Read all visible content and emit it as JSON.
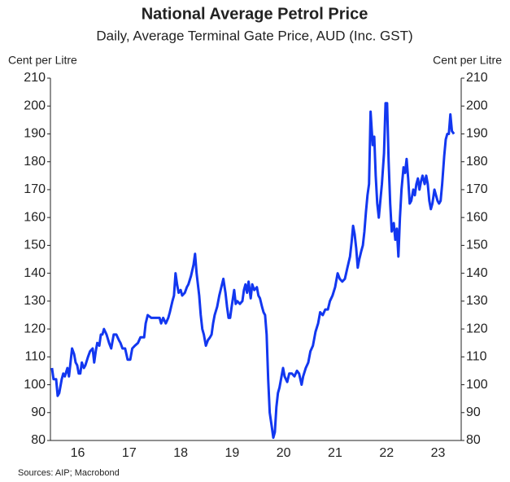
{
  "chart_data": {
    "type": "line",
    "title": "National Average Petrol Price",
    "subtitle": "Daily, Average Terminal Gate Price, AUD (Inc. GST)",
    "ylabel": "Cent per Litre",
    "y2label": "Cent per Litre",
    "source": "Sources: AIP; Macrobond",
    "color": "#1237f0",
    "x": [
      16.0,
      16.03,
      16.08,
      16.11,
      16.14,
      16.19,
      16.22,
      16.25,
      16.3,
      16.33,
      16.36,
      16.39,
      16.43,
      16.46,
      16.49,
      16.52,
      16.55,
      16.58,
      16.62,
      16.65,
      16.7,
      16.74,
      16.79,
      16.82,
      16.85,
      16.88,
      16.92,
      16.95,
      16.98,
      17.01,
      17.06,
      17.11,
      17.15,
      17.2,
      17.25,
      17.3,
      17.33,
      17.37,
      17.42,
      17.47,
      17.52,
      17.56,
      17.61,
      17.67,
      17.72,
      17.79,
      17.82,
      17.86,
      17.93,
      17.99,
      18.04,
      18.09,
      18.12,
      18.16,
      18.21,
      18.26,
      18.29,
      18.34,
      18.37,
      18.4,
      18.43,
      18.46,
      18.5,
      18.53,
      18.58,
      18.62,
      18.65,
      18.7,
      18.75,
      18.78,
      18.81,
      18.86,
      18.89,
      18.92,
      18.95,
      18.99,
      19.03,
      19.07,
      19.1,
      19.13,
      19.16,
      19.21,
      19.25,
      19.29,
      19.33,
      19.37,
      19.4,
      19.43,
      19.46,
      19.49,
      19.54,
      19.57,
      19.6,
      19.65,
      19.7,
      19.73,
      19.76,
      19.79,
      19.82,
      19.86,
      19.89,
      19.93,
      19.98,
      20.01,
      20.04,
      20.08,
      20.11,
      20.14,
      20.17,
      20.2,
      20.23,
      20.27,
      20.3,
      20.33,
      20.36,
      20.39,
      20.42,
      20.46,
      20.49,
      20.52,
      20.57,
      20.61,
      20.66,
      20.71,
      20.76,
      20.8,
      20.85,
      20.88,
      20.93,
      20.98,
      21.02,
      21.07,
      21.12,
      21.17,
      21.21,
      21.26,
      21.31,
      21.36,
      21.4,
      21.45,
      21.5,
      21.55,
      21.59,
      21.64,
      21.69,
      21.74,
      21.79,
      21.82,
      21.85,
      21.88,
      21.91,
      21.94,
      21.97,
      22.01,
      22.04,
      22.07,
      22.1,
      22.13,
      22.16,
      22.19,
      22.23,
      22.26,
      22.29,
      22.32,
      22.35,
      22.38,
      22.41,
      22.45,
      22.48,
      22.51,
      22.54,
      22.57,
      22.6,
      22.64,
      22.67,
      22.7,
      22.73,
      22.76,
      22.79,
      22.83,
      22.86,
      22.89,
      22.92,
      22.95,
      22.98,
      23.02,
      23.05,
      23.08,
      23.11,
      23.14,
      23.17,
      23.2,
      23.24,
      23.27,
      23.3,
      23.33,
      23.36,
      23.39,
      23.43,
      23.46,
      23.49,
      23.52,
      23.55,
      23.58,
      23.62,
      23.65,
      23.68,
      23.71,
      23.74,
      23.77,
      23.81
    ],
    "values": [
      106,
      102,
      102,
      96,
      97,
      102,
      104,
      103,
      106,
      103,
      108,
      113,
      111,
      108,
      107,
      104,
      104,
      108,
      106,
      107,
      110,
      112,
      113,
      108,
      112,
      115,
      114,
      118,
      118,
      120,
      118,
      115,
      113,
      118,
      118,
      116,
      115,
      113,
      113,
      109,
      109,
      113,
      114,
      115,
      117,
      117,
      122,
      125,
      124,
      124,
      124,
      124,
      122,
      124,
      122,
      124,
      126,
      130,
      132,
      140,
      136,
      133,
      134,
      132,
      133,
      135,
      136,
      139,
      143,
      147,
      140,
      132,
      125,
      120,
      118,
      114,
      116,
      117,
      118,
      122,
      125,
      128,
      132,
      135,
      138,
      133,
      128,
      124,
      124,
      128,
      134,
      129,
      130,
      129,
      130,
      134,
      136,
      133,
      137,
      131,
      136,
      134,
      135,
      132,
      131,
      128,
      126,
      125,
      118,
      102,
      90,
      85,
      81,
      83,
      92,
      97,
      99,
      103,
      106,
      103,
      101,
      104,
      104,
      103,
      105,
      104,
      100,
      103,
      106,
      108,
      112,
      114,
      119,
      122,
      126,
      125,
      127,
      127,
      130,
      132,
      135,
      140,
      138,
      137,
      138,
      142,
      146,
      151,
      157,
      154,
      149,
      142,
      145,
      148,
      150,
      155,
      162,
      168,
      172,
      198,
      186,
      189,
      175,
      165,
      160,
      166,
      172,
      183,
      201,
      201,
      180,
      165,
      155,
      158,
      152,
      156,
      146,
      160,
      170,
      178,
      176,
      181,
      174,
      165,
      166,
      170,
      168,
      172,
      174,
      170,
      173,
      175,
      172,
      175,
      172,
      166,
      163,
      165,
      170,
      168,
      166,
      165,
      166,
      172,
      182,
      188,
      190,
      190,
      197,
      191,
      190
    ],
    "xlim": [
      15.97,
      23.95
    ],
    "xticks": [
      {
        "value": 16.5,
        "label": "16"
      },
      {
        "value": 17.5,
        "label": "17"
      },
      {
        "value": 18.5,
        "label": "18"
      },
      {
        "value": 19.5,
        "label": "19"
      },
      {
        "value": 20.5,
        "label": "20"
      },
      {
        "value": 21.5,
        "label": "21"
      },
      {
        "value": 22.5,
        "label": "22"
      },
      {
        "value": 23.5,
        "label": "23"
      }
    ],
    "ylim": [
      80,
      210
    ],
    "yticks": [
      80,
      90,
      100,
      110,
      120,
      130,
      140,
      150,
      160,
      170,
      180,
      190,
      200,
      210
    ],
    "y2lim": [
      80,
      210
    ],
    "y2ticks": [
      80,
      90,
      100,
      110,
      120,
      130,
      140,
      150,
      160,
      170,
      180,
      190,
      200,
      210
    ]
  }
}
